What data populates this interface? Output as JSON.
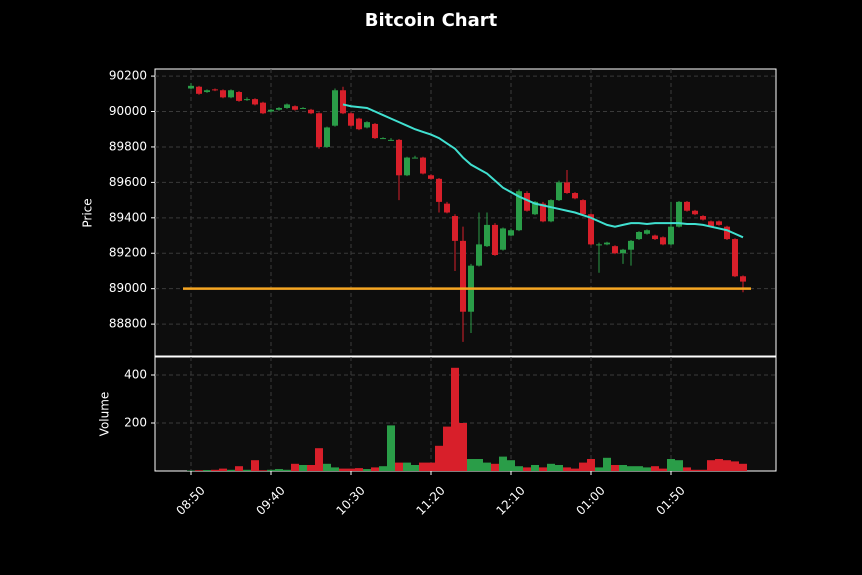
{
  "chart_data": {
    "type": "candlestick",
    "title": "Bitcoin Chart",
    "ylabel": "Price",
    "volume_label": "Volume",
    "categories": [
      "08:50",
      null,
      null,
      null,
      null,
      null,
      null,
      null,
      null,
      null,
      "09:40",
      null,
      null,
      null,
      null,
      null,
      null,
      null,
      null,
      null,
      "10:30",
      null,
      null,
      null,
      null,
      null,
      null,
      null,
      null,
      null,
      "11:20",
      null,
      null,
      null,
      null,
      null,
      null,
      null,
      null,
      null,
      "12:10",
      null,
      null,
      null,
      null,
      null,
      null,
      null,
      null,
      null,
      "01:00",
      null,
      null,
      null,
      null,
      null,
      null,
      null,
      null,
      null,
      "01:50",
      null,
      null,
      null,
      null,
      null,
      null,
      null,
      null,
      null
    ],
    "open": [
      90130,
      90140,
      90110,
      90125,
      90120,
      90080,
      90110,
      90070,
      90070,
      90050,
      90000,
      90010,
      90020,
      90030,
      90020,
      90010,
      89990,
      89800,
      89920,
      90120,
      89990,
      89960,
      89910,
      89930,
      89850,
      89840,
      89840,
      89640,
      89740,
      89740,
      89640,
      89620,
      89480,
      89410,
      89270,
      88870,
      89130,
      89240,
      89360,
      89220,
      89300,
      89330,
      89540,
      89420,
      89480,
      89380,
      89500,
      89600,
      89540,
      89500,
      89420,
      89250,
      89250,
      89240,
      89200,
      89220,
      89280,
      89310,
      89300,
      89290,
      89250,
      89350,
      89490,
      89440,
      89410,
      89380,
      89380,
      89350,
      89280,
      89070
    ],
    "high": [
      90160,
      90145,
      90125,
      90130,
      90125,
      90125,
      90115,
      90080,
      90075,
      90055,
      90015,
      90025,
      90045,
      90035,
      90025,
      90015,
      89995,
      89915,
      90130,
      90140,
      89995,
      89965,
      89945,
      89935,
      89855,
      89850,
      89845,
      89745,
      89750,
      89745,
      89645,
      89625,
      89490,
      89420,
      89350,
      89140,
      89430,
      89430,
      89370,
      89345,
      89340,
      89560,
      89550,
      89495,
      89490,
      89505,
      89610,
      89670,
      89545,
      89505,
      89425,
      89260,
      89265,
      89245,
      89225,
      89275,
      89325,
      89335,
      89305,
      89295,
      89490,
      89495,
      89495,
      89445,
      89415,
      89385,
      89385,
      89355,
      89285,
      89075
    ],
    "low": [
      90125,
      90095,
      90105,
      90115,
      90075,
      90075,
      90055,
      90060,
      90035,
      89985,
      89995,
      90005,
      90015,
      90005,
      90015,
      89985,
      89790,
      89795,
      89915,
      89985,
      89915,
      89895,
      89905,
      89845,
      89845,
      89835,
      89500,
      89635,
      89735,
      89645,
      89615,
      89430,
      89425,
      89100,
      88700,
      88750,
      89125,
      89235,
      89185,
      89215,
      89295,
      89325,
      89435,
      89415,
      89375,
      89375,
      89495,
      89535,
      89505,
      89415,
      89245,
      89090,
      89245,
      89195,
      89140,
      89130,
      89275,
      89305,
      89275,
      89245,
      89245,
      89345,
      89435,
      89415,
      89385,
      89345,
      89355,
      89275,
      89065,
      88980
    ],
    "close": [
      90145,
      90100,
      90120,
      90120,
      90080,
      90120,
      90060,
      90070,
      90040,
      89990,
      90010,
      90020,
      90040,
      90010,
      90020,
      89990,
      89800,
      89910,
      90120,
      89990,
      89920,
      89900,
      89940,
      89850,
      89850,
      89840,
      89640,
      89740,
      89740,
      89650,
      89620,
      89490,
      89430,
      89270,
      88870,
      89130,
      89250,
      89360,
      89190,
      89340,
      89330,
      89550,
      89440,
      89490,
      89380,
      89500,
      89600,
      89540,
      89510,
      89420,
      89250,
      89250,
      89260,
      89200,
      89220,
      89270,
      89320,
      89330,
      89280,
      89250,
      89350,
      89490,
      89440,
      89420,
      89390,
      89350,
      89360,
      89280,
      89070,
      89040
    ],
    "up_color": "#2a9d48",
    "down_color": "#d81f2a",
    "moving_average": {
      "color": "#40e0d0",
      "values": [
        null,
        null,
        null,
        null,
        null,
        null,
        null,
        null,
        null,
        null,
        null,
        null,
        null,
        null,
        null,
        null,
        null,
        null,
        null,
        90040,
        90030,
        90025,
        90020,
        90000,
        89980,
        89960,
        89940,
        89920,
        89900,
        89885,
        89870,
        89850,
        89820,
        89790,
        89740,
        89700,
        89675,
        89650,
        89610,
        89570,
        89545,
        89520,
        89500,
        89480,
        89470,
        89460,
        89450,
        89440,
        89430,
        89415,
        89400,
        89380,
        89360,
        89350,
        89360,
        89370,
        89370,
        89365,
        89370,
        89370,
        89370,
        89370,
        89365,
        89365,
        89360,
        89350,
        89340,
        89330,
        89310,
        89290
      ]
    },
    "hline": {
      "value": 89000,
      "color": "#f5a623"
    },
    "volume": [
      2,
      3,
      4,
      5,
      10,
      5,
      20,
      5,
      45,
      3,
      5,
      8,
      5,
      30,
      25,
      25,
      95,
      30,
      15,
      10,
      10,
      12,
      8,
      15,
      20,
      190,
      35,
      35,
      25,
      35,
      35,
      105,
      185,
      430,
      200,
      50,
      50,
      35,
      30,
      60,
      45,
      20,
      15,
      25,
      15,
      30,
      25,
      15,
      10,
      35,
      50,
      15,
      55,
      25,
      25,
      20,
      20,
      15,
      20,
      10,
      50,
      45,
      15,
      5,
      5,
      45,
      50,
      45,
      40,
      30
    ],
    "ylim": [
      88620,
      90240
    ],
    "yticks": [
      88800,
      89000,
      89200,
      89400,
      89600,
      89800,
      90000,
      90200
    ],
    "volume_ylim": [
      0,
      475
    ],
    "volume_yticks": [
      200,
      400
    ],
    "grid": true
  }
}
